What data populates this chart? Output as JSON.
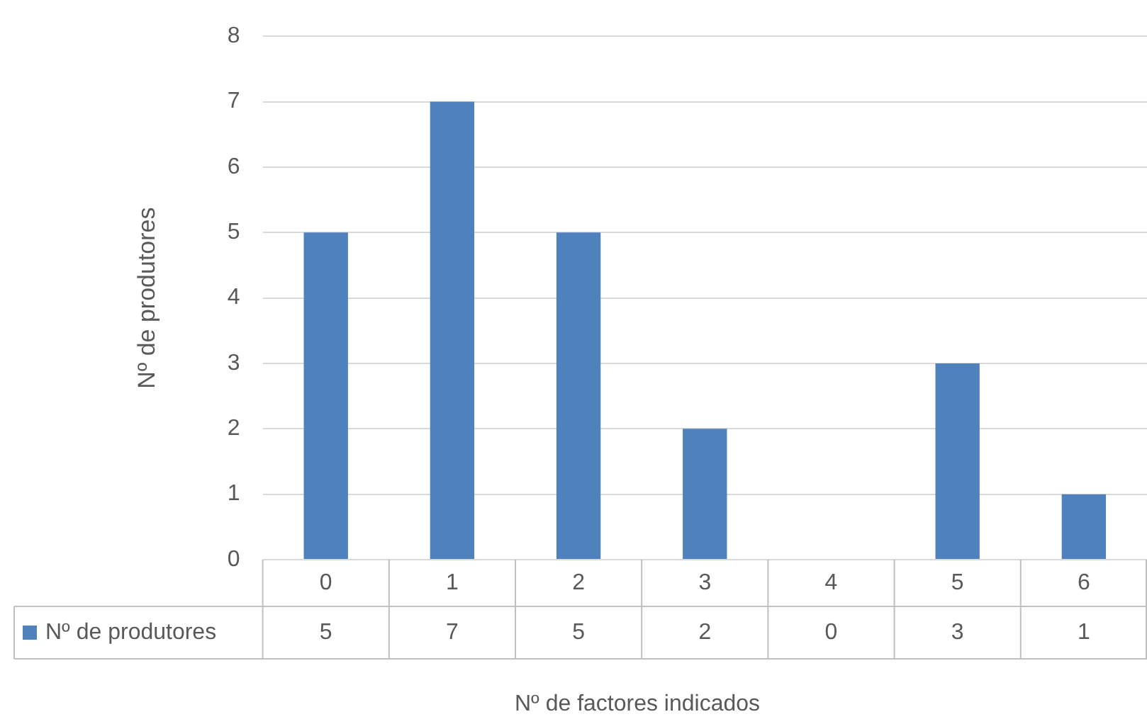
{
  "chart_data": {
    "type": "bar",
    "xlabel": "Nº de factores indicados",
    "ylabel": "Nº de produtores",
    "categories": [
      "0",
      "1",
      "2",
      "3",
      "4",
      "5",
      "6"
    ],
    "series": [
      {
        "name": "Nº de produtores",
        "color": "#4f81bd",
        "values": [
          5,
          7,
          5,
          2,
          0,
          3,
          1
        ]
      }
    ],
    "ylim": [
      0,
      8
    ],
    "yticks": [
      0,
      1,
      2,
      3,
      4,
      5,
      6,
      7,
      8
    ],
    "grid": "y",
    "legend": "bottom left",
    "data_labels": true
  }
}
